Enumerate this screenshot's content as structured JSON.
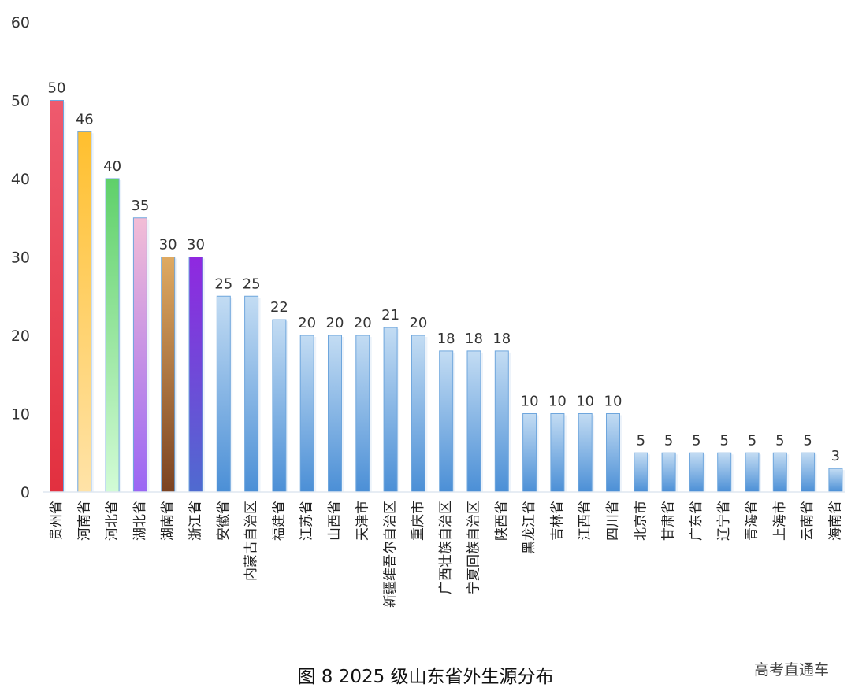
{
  "chart_data": {
    "type": "bar",
    "title": "图 8 2025 级山东省外生源分布",
    "xlabel": "",
    "ylabel": "",
    "ylim": [
      0,
      60
    ],
    "yticks": [
      0,
      10,
      20,
      30,
      40,
      50,
      60
    ],
    "grid": false,
    "legend": "none",
    "categories": [
      "贵州省",
      "河南省",
      "河北省",
      "湖北省",
      "湖南省",
      "浙江省",
      "安徽省",
      "内蒙古自治区",
      "福建省",
      "江苏省",
      "山西省",
      "天津市",
      "新疆维吾尔自治区",
      "重庆市",
      "广西壮族自治区",
      "宁夏回族自治区",
      "陕西省",
      "黑龙江省",
      "吉林省",
      "江西省",
      "四川省",
      "北京市",
      "甘肃省",
      "广东省",
      "辽宁省",
      "青海省",
      "上海市",
      "云南省",
      "海南省"
    ],
    "values": [
      50,
      46,
      40,
      35,
      30,
      30,
      25,
      25,
      22,
      20,
      20,
      20,
      21,
      20,
      18,
      18,
      18,
      10,
      10,
      10,
      10,
      5,
      5,
      5,
      5,
      5,
      5,
      5,
      3
    ],
    "bar_gradients": [
      [
        "#ee5a6e",
        "#e2303f"
      ],
      [
        "#ffbf2e",
        "#ffe3a8"
      ],
      [
        "#5fd06a",
        "#d2fbd6"
      ],
      [
        "#f2bdd6",
        "#9a66f4"
      ],
      [
        "#dfaa62",
        "#7b4323"
      ],
      [
        "#9028e0",
        "#4f6bd0"
      ]
    ],
    "default_gradient": [
      "#c3dcf3",
      "#4b8fd6"
    ],
    "bar_edge": "#6ea6dd"
  },
  "watermark": "高考直通车"
}
